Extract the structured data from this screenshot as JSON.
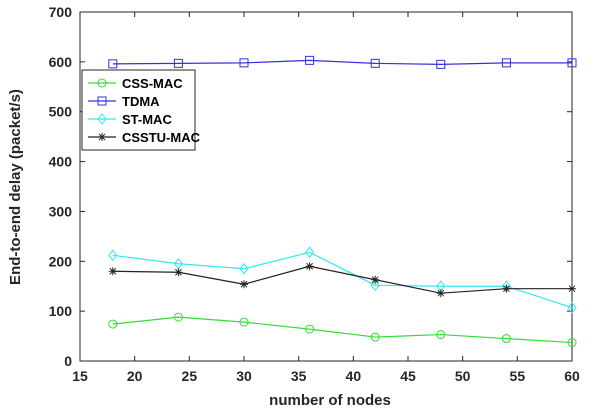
{
  "chart_data": {
    "type": "line",
    "title": "",
    "xlabel": "number of nodes",
    "ylabel": "End-to-end delay (packet/s)",
    "xlim": [
      15,
      60
    ],
    "ylim": [
      0,
      700
    ],
    "x_ticks": [
      "15",
      "20",
      "25",
      "30",
      "35",
      "40",
      "45",
      "50",
      "55",
      "60"
    ],
    "y_ticks": [
      "0",
      "100",
      "200",
      "300",
      "400",
      "500",
      "600",
      "700"
    ],
    "x": [
      18,
      24,
      30,
      36,
      42,
      48,
      54,
      60
    ],
    "grid": false,
    "legend_position": "upper-left",
    "series": [
      {
        "name": "CSS-MAC",
        "color": "#33dd33",
        "marker": "circle",
        "values": [
          74,
          88,
          78,
          64,
          48,
          53,
          45,
          37
        ]
      },
      {
        "name": "TDMA",
        "color": "#3333dd",
        "marker": "square",
        "values": [
          596,
          597,
          598,
          603,
          597,
          595,
          598,
          598
        ]
      },
      {
        "name": "ST-MAC",
        "color": "#33e8f0",
        "marker": "diamond",
        "values": [
          212,
          195,
          185,
          218,
          152,
          150,
          150,
          107
        ]
      },
      {
        "name": "CSSTU-MAC",
        "color": "#222222",
        "marker": "star",
        "values": [
          180,
          178,
          154,
          190,
          163,
          136,
          145,
          145
        ]
      }
    ]
  }
}
